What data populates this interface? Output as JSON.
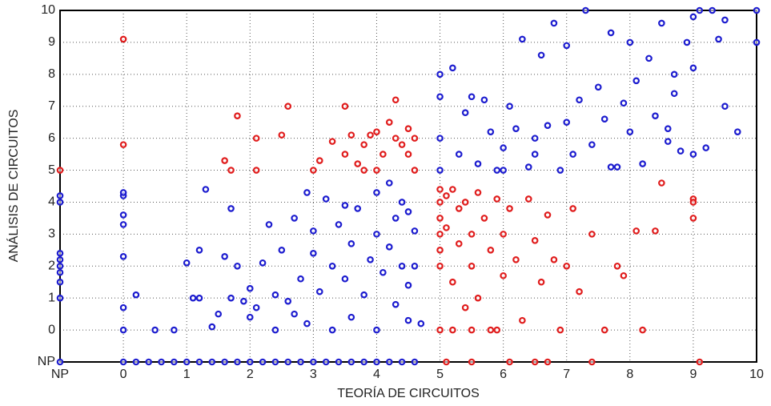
{
  "chart_data": {
    "type": "scatter",
    "xlabel": "TEORÍA DE CIRCUITOS",
    "ylabel": "ANÁLISIS DE CIRCUITOS",
    "xlim": [
      -1,
      10
    ],
    "ylim": [
      -1,
      10
    ],
    "xticks": [
      {
        "value": -1,
        "label": "NP"
      },
      0,
      1,
      2,
      3,
      4,
      5,
      6,
      7,
      8,
      9,
      10
    ],
    "yticks": [
      {
        "value": -1,
        "label": "NP"
      },
      0,
      1,
      2,
      3,
      4,
      5,
      6,
      7,
      8,
      9,
      10
    ],
    "grid": true,
    "series": [
      {
        "color": "#1c1ccf",
        "x": [
          0,
          0.2,
          0.4,
          0.6,
          0.8,
          1,
          1.2,
          1.4,
          1.6,
          1.8,
          2,
          2.2,
          2.4,
          2.6,
          2.8,
          3,
          3.2,
          3.4,
          3.6,
          3.8,
          4,
          4.2,
          4.4,
          4.6,
          -1,
          -1,
          -1,
          -1,
          -1,
          -1,
          -1,
          -1,
          -1,
          0,
          0,
          0,
          0,
          0,
          0,
          0,
          0.2,
          0.5,
          0.8,
          1,
          1.1,
          1.2,
          1.2,
          1.3,
          1.4,
          1.5,
          1.6,
          1.7,
          1.7,
          1.8,
          2,
          2,
          2.1,
          2.2,
          2.3,
          2.4,
          2.4,
          2.5,
          2.6,
          2.7,
          2.8,
          2.9,
          3,
          3,
          3.1,
          3.2,
          3.3,
          3.3,
          3.4,
          3.5,
          3.6,
          3.6,
          3.7,
          3.8,
          3.9,
          4,
          4,
          4,
          4.1,
          4.2,
          4.2,
          4.3,
          4.3,
          4.4,
          4.4,
          4.5,
          4.5,
          4.5,
          4.6,
          4.7,
          4.6,
          3.5,
          2.9,
          1.9,
          2.7,
          5,
          5,
          5,
          5,
          5.2,
          5.3,
          5.4,
          5.5,
          5.6,
          5.7,
          5.8,
          5.9,
          6,
          6.1,
          6.2,
          6.3,
          6.4,
          6.5,
          6.6,
          6.7,
          6.8,
          6.9,
          7,
          7,
          7.1,
          7.2,
          7.3,
          7.4,
          7.5,
          7.6,
          7.7,
          7.8,
          7.9,
          8,
          8,
          8.1,
          8.2,
          8.3,
          8.4,
          8.5,
          8.6,
          8.7,
          8.8,
          8.9,
          9,
          9,
          9,
          9.1,
          9.2,
          9.3,
          9.4,
          9.5,
          9.5,
          9.7,
          10,
          10,
          8.7,
          6,
          6.5,
          7.7,
          8.6
        ],
        "values": [
          -1,
          -1,
          -1,
          -1,
          -1,
          -1,
          -1,
          -1,
          -1,
          -1,
          -1,
          -1,
          -1,
          -1,
          -1,
          -1,
          -1,
          -1,
          -1,
          -1,
          -1,
          -1,
          -1,
          -1,
          -1,
          1,
          1.5,
          1.8,
          2,
          2.2,
          2.4,
          4,
          4.2,
          0,
          0.7,
          2.3,
          3.3,
          3.6,
          4.2,
          4.3,
          1.1,
          0,
          0,
          2.1,
          1,
          1,
          2.5,
          4.4,
          0.1,
          0.5,
          2.3,
          3.8,
          1,
          2,
          0.4,
          1.3,
          0.7,
          2.1,
          3.3,
          0,
          1.1,
          2.5,
          0.9,
          3.5,
          1.6,
          0.2,
          2.4,
          3.1,
          1.2,
          4.1,
          0,
          2,
          3.3,
          1.6,
          0.4,
          2.7,
          3.8,
          1.1,
          2.2,
          0,
          4.3,
          3,
          1.8,
          2.6,
          4.6,
          0.8,
          3.5,
          2,
          4,
          0.3,
          1.4,
          3.7,
          2,
          0.2,
          3.1,
          3.9,
          4.3,
          0.9,
          0.5,
          8,
          7.3,
          6,
          5,
          8.2,
          5.5,
          6.8,
          7.3,
          5.2,
          7.2,
          6.2,
          5,
          5.7,
          7,
          6.3,
          9.1,
          5.1,
          5.5,
          8.6,
          6.4,
          9.6,
          5,
          6.5,
          8.9,
          5.5,
          7.2,
          10,
          5.8,
          7.6,
          6.6,
          9.3,
          5.1,
          7.1,
          9,
          6.2,
          7.8,
          5.2,
          8.5,
          6.7,
          9.6,
          6.3,
          7.4,
          5.6,
          9,
          9.8,
          8.2,
          5.5,
          10,
          5.7,
          10,
          9.1,
          9.7,
          7,
          6.2,
          10,
          9,
          8,
          5,
          6,
          5.1,
          5.9
        ]
      },
      {
        "color": "#e01c1c",
        "x": [
          0,
          0,
          -1,
          1.6,
          1.7,
          1.8,
          2.1,
          2.1,
          2.6,
          2.5,
          3,
          3.1,
          3.3,
          3.5,
          3.5,
          3.6,
          3.7,
          3.8,
          3.9,
          4,
          4,
          4.1,
          4.2,
          4.3,
          4.3,
          4.4,
          4.5,
          4.6,
          4.6,
          4.5,
          3.8,
          5,
          5,
          5,
          5,
          5,
          5,
          5.1,
          5.1,
          5.2,
          5.2,
          5.3,
          5.3,
          5.4,
          5.4,
          5.5,
          5.5,
          5.6,
          5.6,
          5.7,
          5.8,
          5.9,
          5.9,
          6,
          6,
          6.1,
          6.2,
          6.3,
          6.4,
          6.5,
          6.6,
          6.7,
          6.8,
          6.9,
          7,
          7.1,
          7.2,
          7.4,
          7.6,
          7.8,
          7.9,
          8.1,
          8.2,
          8.4,
          8.5,
          9,
          9,
          9,
          5.1,
          5.5,
          6.1,
          6.5,
          6.7,
          7.4,
          9.1,
          5,
          5.2,
          5.5,
          5.8
        ],
        "values": [
          9.1,
          5.8,
          5,
          5.3,
          5,
          6.7,
          6,
          5,
          7,
          6.1,
          5,
          5.3,
          5.9,
          7,
          5.5,
          6.1,
          5.2,
          5.8,
          6.1,
          6.2,
          5,
          5.5,
          6.5,
          6,
          7.2,
          5.8,
          6.3,
          5,
          6,
          5.5,
          5,
          4.4,
          4,
          3.5,
          3,
          2.5,
          2,
          4.2,
          3.2,
          4.4,
          1.5,
          3.8,
          2.7,
          4,
          0.7,
          3,
          2,
          4.3,
          1,
          3.5,
          2.5,
          4.1,
          0,
          3,
          1.7,
          3.8,
          2.2,
          0.3,
          4.1,
          2.8,
          1.5,
          3.6,
          2.2,
          0,
          2,
          3.8,
          1.2,
          3,
          0,
          2,
          1.7,
          3.1,
          0,
          3.1,
          4.6,
          4.1,
          3.5,
          4,
          -1,
          -1,
          -1,
          -1,
          -1,
          -1,
          -1,
          0,
          0,
          0,
          0
        ]
      }
    ]
  }
}
